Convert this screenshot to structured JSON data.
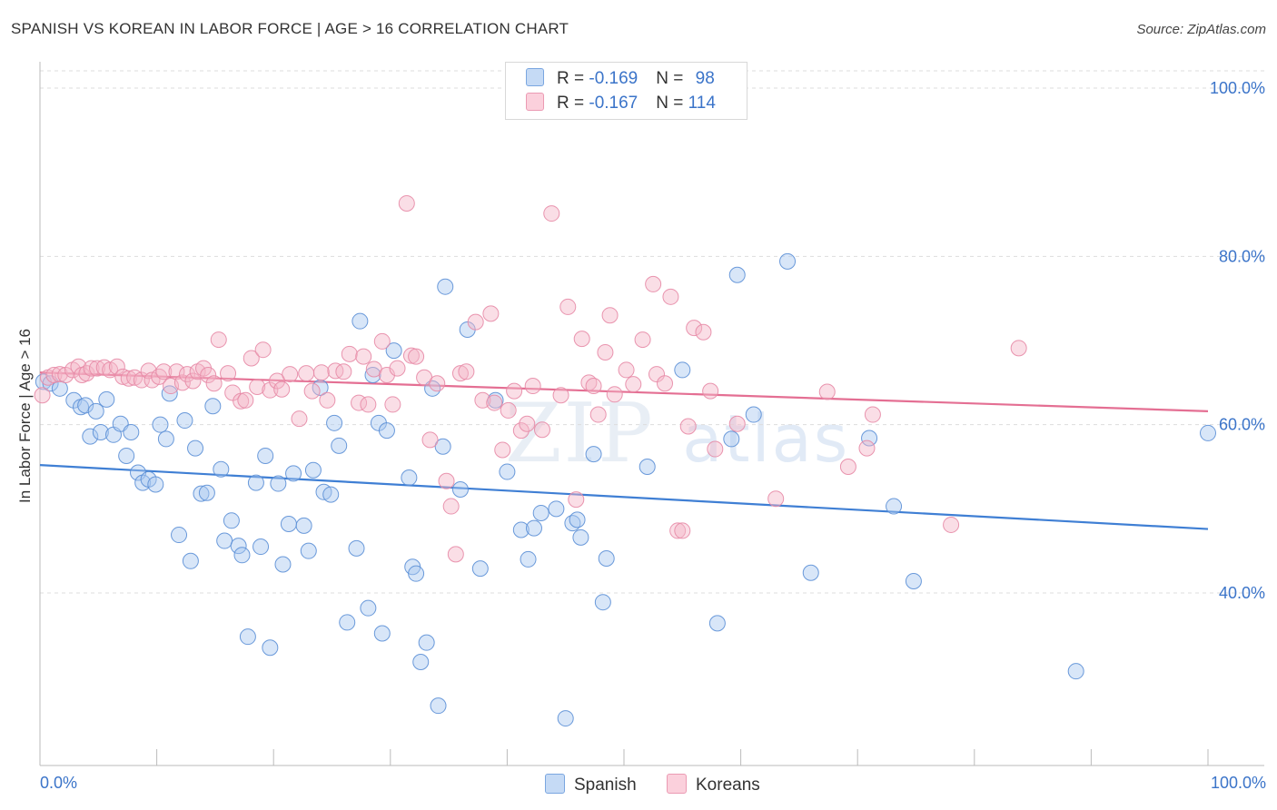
{
  "title": "SPANISH VS KOREAN IN LABOR FORCE | AGE > 16 CORRELATION CHART",
  "source": "Source: ZipAtlas.com",
  "watermark": {
    "zip": "ZIP",
    "atlas": "atlas"
  },
  "legend": {
    "spanish": {
      "r_label": "R = ",
      "r_value": "-0.169",
      "n_label": "N = ",
      "n_value": "98",
      "color": "#a9c8f0"
    },
    "koreans": {
      "r_label": "R = ",
      "r_value": "-0.167",
      "n_label": "N = ",
      "n_value": "114",
      "color": "#f5b6c8"
    }
  },
  "bottom_legend": {
    "spanish": "Spanish",
    "koreans": "Koreans"
  },
  "chart_data": {
    "type": "scatter",
    "title": "SPANISH VS KOREAN IN LABOR FORCE | AGE > 16 CORRELATION CHART",
    "xlabel": "",
    "ylabel": "In Labor Force | Age > 16",
    "xlim": [
      0,
      100
    ],
    "ylim": [
      20,
      104
    ],
    "x_tick_labels": [
      "0.0%",
      "100.0%"
    ],
    "y_ticks": [
      40,
      60,
      80,
      100
    ],
    "y_tick_labels": [
      "40.0%",
      "60.0%",
      "80.0%",
      "100.0%"
    ],
    "grid": true,
    "series": [
      {
        "name": "Spanish",
        "color": "#a9c8f0",
        "edge": "#5b8fd6",
        "line_color": "#3f7fd4",
        "trend": [
          [
            0,
            55.2
          ],
          [
            100,
            47.6
          ]
        ],
        "points": [
          [
            0.3,
            65.1
          ],
          [
            0.9,
            64.9
          ],
          [
            1.7,
            64.3
          ],
          [
            2.9,
            62.9
          ],
          [
            3.5,
            62.1
          ],
          [
            3.9,
            62.3
          ],
          [
            4.3,
            58.6
          ],
          [
            4.8,
            61.6
          ],
          [
            5.2,
            59.1
          ],
          [
            5.7,
            63.0
          ],
          [
            6.3,
            58.8
          ],
          [
            6.9,
            60.1
          ],
          [
            7.4,
            56.3
          ],
          [
            7.8,
            59.1
          ],
          [
            8.4,
            54.3
          ],
          [
            8.8,
            53.1
          ],
          [
            9.3,
            53.5
          ],
          [
            9.9,
            52.9
          ],
          [
            10.3,
            60.0
          ],
          [
            10.8,
            58.3
          ],
          [
            11.1,
            63.7
          ],
          [
            11.9,
            46.9
          ],
          [
            12.4,
            60.5
          ],
          [
            12.9,
            43.8
          ],
          [
            13.3,
            57.2
          ],
          [
            13.8,
            51.8
          ],
          [
            14.3,
            51.9
          ],
          [
            14.8,
            62.2
          ],
          [
            15.5,
            54.7
          ],
          [
            15.8,
            46.2
          ],
          [
            16.4,
            48.6
          ],
          [
            17.0,
            45.6
          ],
          [
            17.3,
            44.5
          ],
          [
            17.8,
            34.8
          ],
          [
            18.5,
            53.1
          ],
          [
            18.9,
            45.5
          ],
          [
            19.3,
            56.3
          ],
          [
            19.7,
            33.5
          ],
          [
            20.4,
            53.0
          ],
          [
            20.8,
            43.4
          ],
          [
            21.3,
            48.2
          ],
          [
            21.7,
            54.2
          ],
          [
            22.6,
            48.0
          ],
          [
            23.0,
            45.0
          ],
          [
            23.4,
            54.6
          ],
          [
            24.0,
            64.4
          ],
          [
            24.3,
            52.0
          ],
          [
            24.9,
            51.7
          ],
          [
            25.2,
            60.2
          ],
          [
            25.6,
            57.5
          ],
          [
            26.3,
            36.5
          ],
          [
            27.1,
            45.3
          ],
          [
            27.4,
            72.3
          ],
          [
            28.1,
            38.2
          ],
          [
            28.5,
            65.9
          ],
          [
            29.0,
            60.2
          ],
          [
            29.3,
            35.2
          ],
          [
            29.7,
            59.3
          ],
          [
            30.3,
            68.8
          ],
          [
            31.6,
            53.7
          ],
          [
            31.9,
            43.1
          ],
          [
            32.2,
            42.3
          ],
          [
            33.1,
            34.1
          ],
          [
            32.6,
            31.8
          ],
          [
            33.6,
            64.3
          ],
          [
            34.1,
            26.6
          ],
          [
            34.5,
            57.4
          ],
          [
            34.7,
            76.4
          ],
          [
            36.0,
            52.3
          ],
          [
            36.6,
            71.3
          ],
          [
            37.7,
            42.9
          ],
          [
            39.0,
            62.9
          ],
          [
            40.0,
            54.4
          ],
          [
            41.2,
            47.5
          ],
          [
            41.8,
            44.0
          ],
          [
            42.3,
            47.7
          ],
          [
            42.9,
            49.5
          ],
          [
            44.2,
            50.0
          ],
          [
            45.0,
            25.1
          ],
          [
            45.6,
            48.3
          ],
          [
            46.0,
            48.7
          ],
          [
            46.3,
            46.6
          ],
          [
            47.4,
            56.5
          ],
          [
            48.2,
            38.9
          ],
          [
            48.5,
            44.1
          ],
          [
            52.0,
            55.0
          ],
          [
            55.0,
            66.5
          ],
          [
            58.0,
            36.4
          ],
          [
            59.2,
            58.3
          ],
          [
            59.7,
            77.8
          ],
          [
            61.1,
            61.2
          ],
          [
            64.0,
            79.4
          ],
          [
            66.0,
            42.4
          ],
          [
            71.0,
            58.4
          ],
          [
            73.1,
            50.3
          ],
          [
            74.8,
            41.4
          ],
          [
            88.7,
            30.7
          ],
          [
            100.0,
            59.0
          ]
        ]
      },
      {
        "name": "Koreans",
        "color": "#f5b6c8",
        "edge": "#e78aa6",
        "line_color": "#e46f93",
        "trend": [
          [
            0,
            66.2
          ],
          [
            100,
            61.6
          ]
        ],
        "points": [
          [
            0.2,
            63.5
          ],
          [
            0.7,
            65.6
          ],
          [
            1.2,
            65.9
          ],
          [
            1.7,
            66.0
          ],
          [
            2.2,
            65.9
          ],
          [
            2.8,
            66.5
          ],
          [
            3.3,
            66.9
          ],
          [
            3.6,
            65.9
          ],
          [
            4.0,
            66.1
          ],
          [
            4.4,
            66.7
          ],
          [
            4.9,
            66.7
          ],
          [
            5.5,
            66.8
          ],
          [
            6.0,
            66.5
          ],
          [
            6.6,
            66.9
          ],
          [
            7.1,
            65.7
          ],
          [
            7.6,
            65.5
          ],
          [
            8.1,
            65.6
          ],
          [
            8.7,
            65.3
          ],
          [
            9.3,
            66.4
          ],
          [
            9.6,
            65.3
          ],
          [
            10.2,
            65.7
          ],
          [
            10.6,
            66.3
          ],
          [
            11.2,
            64.6
          ],
          [
            11.7,
            66.3
          ],
          [
            12.2,
            65.0
          ],
          [
            12.6,
            66.0
          ],
          [
            13.1,
            65.2
          ],
          [
            13.5,
            66.3
          ],
          [
            14.0,
            66.7
          ],
          [
            14.4,
            65.9
          ],
          [
            14.9,
            64.9
          ],
          [
            15.3,
            70.1
          ],
          [
            16.1,
            66.1
          ],
          [
            16.5,
            63.8
          ],
          [
            17.2,
            62.8
          ],
          [
            17.6,
            62.9
          ],
          [
            18.1,
            67.9
          ],
          [
            18.6,
            64.5
          ],
          [
            19.1,
            68.9
          ],
          [
            19.7,
            64.1
          ],
          [
            20.3,
            65.2
          ],
          [
            20.7,
            64.2
          ],
          [
            21.4,
            66.0
          ],
          [
            22.2,
            60.7
          ],
          [
            22.8,
            66.1
          ],
          [
            23.3,
            64.0
          ],
          [
            24.1,
            66.2
          ],
          [
            24.6,
            62.9
          ],
          [
            25.3,
            66.4
          ],
          [
            26.0,
            66.3
          ],
          [
            26.5,
            68.4
          ],
          [
            27.3,
            62.6
          ],
          [
            27.7,
            68.1
          ],
          [
            28.1,
            62.4
          ],
          [
            28.6,
            66.6
          ],
          [
            29.3,
            69.9
          ],
          [
            29.7,
            65.9
          ],
          [
            30.2,
            62.4
          ],
          [
            30.6,
            66.7
          ],
          [
            31.4,
            86.3
          ],
          [
            31.8,
            68.2
          ],
          [
            32.2,
            68.1
          ],
          [
            32.9,
            65.6
          ],
          [
            33.4,
            58.2
          ],
          [
            34.0,
            64.9
          ],
          [
            34.8,
            53.3
          ],
          [
            35.2,
            50.3
          ],
          [
            35.6,
            44.6
          ],
          [
            36.0,
            66.1
          ],
          [
            36.5,
            66.3
          ],
          [
            37.3,
            72.2
          ],
          [
            37.9,
            62.9
          ],
          [
            38.6,
            73.2
          ],
          [
            38.9,
            62.6
          ],
          [
            39.6,
            57.0
          ],
          [
            40.1,
            61.7
          ],
          [
            40.6,
            64.0
          ],
          [
            41.2,
            59.3
          ],
          [
            41.7,
            60.1
          ],
          [
            42.2,
            64.6
          ],
          [
            43.0,
            59.4
          ],
          [
            43.8,
            85.1
          ],
          [
            44.6,
            63.5
          ],
          [
            45.2,
            74.0
          ],
          [
            45.9,
            51.1
          ],
          [
            46.4,
            70.2
          ],
          [
            47.0,
            65.0
          ],
          [
            47.4,
            64.6
          ],
          [
            47.8,
            61.2
          ],
          [
            48.4,
            68.6
          ],
          [
            48.8,
            73.0
          ],
          [
            49.2,
            63.6
          ],
          [
            50.2,
            66.5
          ],
          [
            50.8,
            64.8
          ],
          [
            51.6,
            70.1
          ],
          [
            52.5,
            76.7
          ],
          [
            52.8,
            66.0
          ],
          [
            53.5,
            64.9
          ],
          [
            54.0,
            75.2
          ],
          [
            54.6,
            47.4
          ],
          [
            55.5,
            59.8
          ],
          [
            56.0,
            71.5
          ],
          [
            56.8,
            71.0
          ],
          [
            57.4,
            64.0
          ],
          [
            57.8,
            57.1
          ],
          [
            59.7,
            60.1
          ],
          [
            67.4,
            63.9
          ],
          [
            69.2,
            55.0
          ],
          [
            70.8,
            57.2
          ],
          [
            71.3,
            61.2
          ],
          [
            78.0,
            48.1
          ],
          [
            83.8,
            69.1
          ],
          [
            63.0,
            51.2
          ],
          [
            55.0,
            47.4
          ]
        ]
      }
    ]
  }
}
